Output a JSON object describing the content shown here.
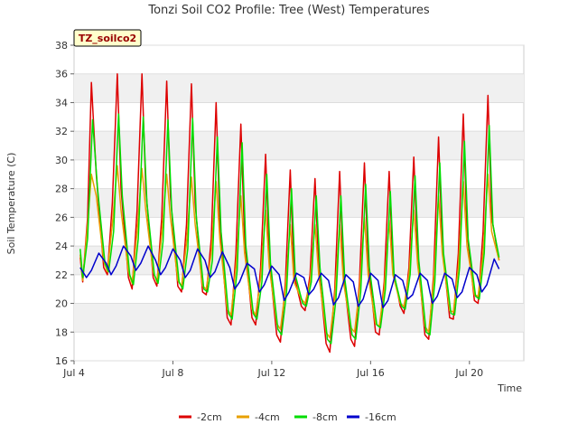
{
  "chart_data": {
    "type": "line",
    "title": "Tonzi Soil CO2 Profile: Tree (West) Temperatures",
    "xlabel": "Time",
    "ylabel": "Soil Temperature (C)",
    "badge": "TZ_soilco2",
    "xlim": [
      4.0,
      22.2
    ],
    "ylim": [
      16,
      38
    ],
    "y_ticks": [
      16,
      18,
      20,
      22,
      24,
      26,
      28,
      30,
      32,
      34,
      36,
      38
    ],
    "x_ticks": [
      {
        "value": 4,
        "label": "Jul 4"
      },
      {
        "value": 8,
        "label": "Jul 8"
      },
      {
        "value": 12,
        "label": "Jul 12"
      },
      {
        "value": 16,
        "label": "Jul 16"
      },
      {
        "value": 20,
        "label": "Jul 20"
      }
    ],
    "grid": true,
    "legend_position": "bottom",
    "series": [
      {
        "name": "-2cm",
        "color": "#dd0000",
        "x": [
          4.25,
          4.35,
          4.55,
          4.7,
          4.9,
          5.2,
          5.35,
          5.55,
          5.75,
          5.9,
          6.2,
          6.35,
          6.55,
          6.75,
          6.9,
          7.2,
          7.35,
          7.55,
          7.75,
          7.9,
          8.2,
          8.35,
          8.55,
          8.75,
          8.9,
          9.2,
          9.35,
          9.55,
          9.75,
          9.9,
          10.2,
          10.35,
          10.55,
          10.75,
          10.9,
          11.2,
          11.35,
          11.55,
          11.75,
          11.9,
          12.2,
          12.35,
          12.55,
          12.75,
          12.9,
          13.2,
          13.35,
          13.55,
          13.75,
          13.9,
          14.2,
          14.35,
          14.55,
          14.75,
          14.9,
          15.2,
          15.35,
          15.55,
          15.75,
          15.9,
          16.2,
          16.35,
          16.55,
          16.75,
          16.9,
          17.2,
          17.35,
          17.55,
          17.75,
          17.9,
          18.2,
          18.35,
          18.55,
          18.75,
          18.9,
          19.2,
          19.35,
          19.55,
          19.75,
          19.9,
          20.2,
          20.35,
          20.55,
          20.75,
          20.9,
          21.2
        ],
        "y": [
          23.2,
          21.5,
          26.0,
          35.4,
          29.0,
          22.5,
          22.0,
          27.0,
          36.0,
          28.0,
          21.8,
          21.0,
          26.5,
          36.0,
          28.0,
          21.8,
          21.2,
          26.0,
          35.5,
          27.5,
          21.2,
          20.8,
          25.5,
          35.3,
          27.0,
          20.8,
          20.6,
          24.5,
          34.0,
          25.5,
          19.0,
          18.5,
          23.5,
          32.5,
          24.5,
          19.0,
          18.5,
          22.5,
          30.4,
          23.0,
          17.8,
          17.3,
          21.5,
          29.3,
          22.0,
          19.8,
          19.5,
          22.0,
          28.7,
          22.5,
          17.2,
          16.6,
          21.0,
          29.2,
          22.0,
          17.5,
          17.0,
          21.5,
          29.8,
          23.0,
          18.0,
          17.8,
          21.5,
          29.2,
          22.5,
          19.8,
          19.3,
          22.5,
          30.2,
          23.5,
          17.8,
          17.5,
          22.0,
          31.6,
          24.0,
          19.0,
          18.9,
          23.5,
          33.2,
          25.0,
          20.2,
          20.0,
          25.0,
          34.5,
          26.0,
          23.0
        ]
      },
      {
        "name": "-4cm",
        "color": "#e8a000",
        "x": [
          4.25,
          4.35,
          4.55,
          4.7,
          4.9,
          5.2,
          5.35,
          5.55,
          5.75,
          5.9,
          6.2,
          6.35,
          6.55,
          6.75,
          6.9,
          7.2,
          7.35,
          7.55,
          7.75,
          7.9,
          8.2,
          8.35,
          8.55,
          8.75,
          8.9,
          9.2,
          9.35,
          9.55,
          9.75,
          9.9,
          10.2,
          10.35,
          10.55,
          10.75,
          10.9,
          11.2,
          11.35,
          11.55,
          11.75,
          11.9,
          12.2,
          12.35,
          12.55,
          12.75,
          12.9,
          13.2,
          13.35,
          13.55,
          13.75,
          13.9,
          14.2,
          14.35,
          14.55,
          14.75,
          14.9,
          15.2,
          15.35,
          15.55,
          15.75,
          15.9,
          16.2,
          16.35,
          16.55,
          16.75,
          16.9,
          17.2,
          17.35,
          17.55,
          17.75,
          17.9,
          18.2,
          18.35,
          18.55,
          18.75,
          18.9,
          19.2,
          19.35,
          19.55,
          19.75,
          19.9,
          20.2,
          20.35,
          20.55,
          20.75,
          20.9,
          21.2
        ],
        "y": [
          23.4,
          21.6,
          25.5,
          29.0,
          27.5,
          23.0,
          22.2,
          25.5,
          29.6,
          26.5,
          22.2,
          21.4,
          25.0,
          29.4,
          26.5,
          22.2,
          21.5,
          24.8,
          29.0,
          26.0,
          21.6,
          21.2,
          24.2,
          28.8,
          25.5,
          21.2,
          21.0,
          23.5,
          28.5,
          24.5,
          19.6,
          19.2,
          22.5,
          27.5,
          23.5,
          19.6,
          19.2,
          21.8,
          26.5,
          22.5,
          18.6,
          18.2,
          21.0,
          25.5,
          21.5,
          20.3,
          20.0,
          21.5,
          25.5,
          22.0,
          18.0,
          17.6,
          20.5,
          25.5,
          21.5,
          18.3,
          18.0,
          21.0,
          26.0,
          22.0,
          18.6,
          18.4,
          21.0,
          25.8,
          22.0,
          20.0,
          19.8,
          22.0,
          26.5,
          22.8,
          18.4,
          18.0,
          21.5,
          27.5,
          23.5,
          19.5,
          19.4,
          22.5,
          28.5,
          24.0,
          20.6,
          20.5,
          23.5,
          29.0,
          25.0,
          23.0
        ]
      },
      {
        "name": "-8cm",
        "color": "#00dd00",
        "x": [
          4.25,
          4.35,
          4.55,
          4.75,
          4.95,
          5.25,
          5.4,
          5.6,
          5.8,
          5.95,
          6.25,
          6.4,
          6.6,
          6.8,
          6.95,
          7.25,
          7.4,
          7.6,
          7.8,
          7.95,
          8.25,
          8.4,
          8.6,
          8.8,
          8.95,
          9.25,
          9.4,
          9.6,
          9.8,
          9.95,
          10.25,
          10.4,
          10.6,
          10.8,
          10.95,
          11.25,
          11.4,
          11.6,
          11.8,
          11.95,
          12.25,
          12.4,
          12.6,
          12.8,
          12.95,
          13.25,
          13.4,
          13.6,
          13.8,
          13.95,
          14.25,
          14.4,
          14.6,
          14.8,
          14.95,
          15.25,
          15.4,
          15.6,
          15.8,
          15.95,
          16.25,
          16.4,
          16.6,
          16.8,
          16.95,
          17.25,
          17.4,
          17.6,
          17.8,
          17.95,
          18.25,
          18.4,
          18.6,
          18.8,
          18.95,
          19.25,
          19.4,
          19.6,
          19.8,
          19.95,
          20.25,
          20.4,
          20.6,
          20.8,
          20.95,
          21.2
        ],
        "y": [
          23.8,
          21.8,
          24.5,
          32.8,
          28.0,
          22.8,
          22.2,
          25.0,
          33.2,
          27.5,
          22.0,
          21.3,
          24.5,
          33.0,
          27.0,
          22.0,
          21.4,
          24.3,
          32.8,
          26.5,
          21.5,
          21.0,
          23.8,
          32.9,
          26.0,
          21.0,
          20.8,
          23.0,
          31.6,
          25.0,
          19.3,
          18.9,
          22.3,
          31.2,
          24.0,
          19.3,
          18.9,
          21.5,
          29.0,
          22.8,
          18.2,
          17.8,
          20.8,
          28.0,
          22.0,
          20.0,
          19.8,
          21.5,
          27.5,
          22.5,
          17.5,
          17.2,
          20.3,
          27.5,
          21.8,
          17.8,
          17.5,
          20.8,
          28.3,
          22.5,
          18.5,
          18.3,
          21.0,
          27.8,
          22.0,
          19.8,
          19.6,
          22.0,
          28.9,
          23.0,
          18.0,
          17.8,
          21.5,
          29.8,
          23.5,
          19.3,
          19.2,
          22.5,
          31.3,
          24.5,
          20.5,
          20.3,
          23.5,
          32.4,
          25.5,
          23.2
        ]
      },
      {
        "name": "-16cm",
        "color": "#0000cc",
        "x": [
          4.25,
          4.5,
          4.7,
          5.0,
          5.3,
          5.5,
          5.7,
          6.0,
          6.3,
          6.5,
          6.7,
          7.0,
          7.3,
          7.5,
          7.7,
          8.0,
          8.3,
          8.5,
          8.7,
          9.0,
          9.3,
          9.5,
          9.7,
          10.0,
          10.3,
          10.5,
          10.7,
          11.0,
          11.3,
          11.5,
          11.7,
          12.0,
          12.3,
          12.5,
          12.7,
          13.0,
          13.3,
          13.5,
          13.7,
          14.0,
          14.3,
          14.5,
          14.7,
          15.0,
          15.3,
          15.5,
          15.7,
          16.0,
          16.3,
          16.5,
          16.7,
          17.0,
          17.3,
          17.5,
          17.7,
          18.0,
          18.3,
          18.5,
          18.7,
          19.0,
          19.3,
          19.5,
          19.7,
          20.0,
          20.3,
          20.5,
          20.7,
          21.0,
          21.2
        ],
        "y": [
          22.5,
          21.8,
          22.3,
          23.5,
          22.8,
          22.0,
          22.6,
          24.0,
          23.3,
          22.3,
          22.8,
          24.0,
          23.0,
          22.0,
          22.5,
          23.8,
          23.0,
          21.8,
          22.3,
          23.8,
          23.0,
          21.8,
          22.2,
          23.6,
          22.5,
          21.0,
          21.5,
          22.8,
          22.4,
          20.8,
          21.3,
          22.6,
          22.0,
          20.2,
          20.8,
          22.1,
          21.8,
          20.6,
          21.0,
          22.1,
          21.6,
          19.9,
          20.4,
          22.0,
          21.5,
          19.8,
          20.3,
          22.1,
          21.6,
          19.7,
          20.2,
          22.0,
          21.6,
          20.3,
          20.6,
          22.1,
          21.6,
          20.0,
          20.5,
          22.1,
          21.7,
          20.4,
          20.8,
          22.5,
          22.0,
          20.8,
          21.3,
          23.1,
          22.4
        ]
      }
    ]
  }
}
